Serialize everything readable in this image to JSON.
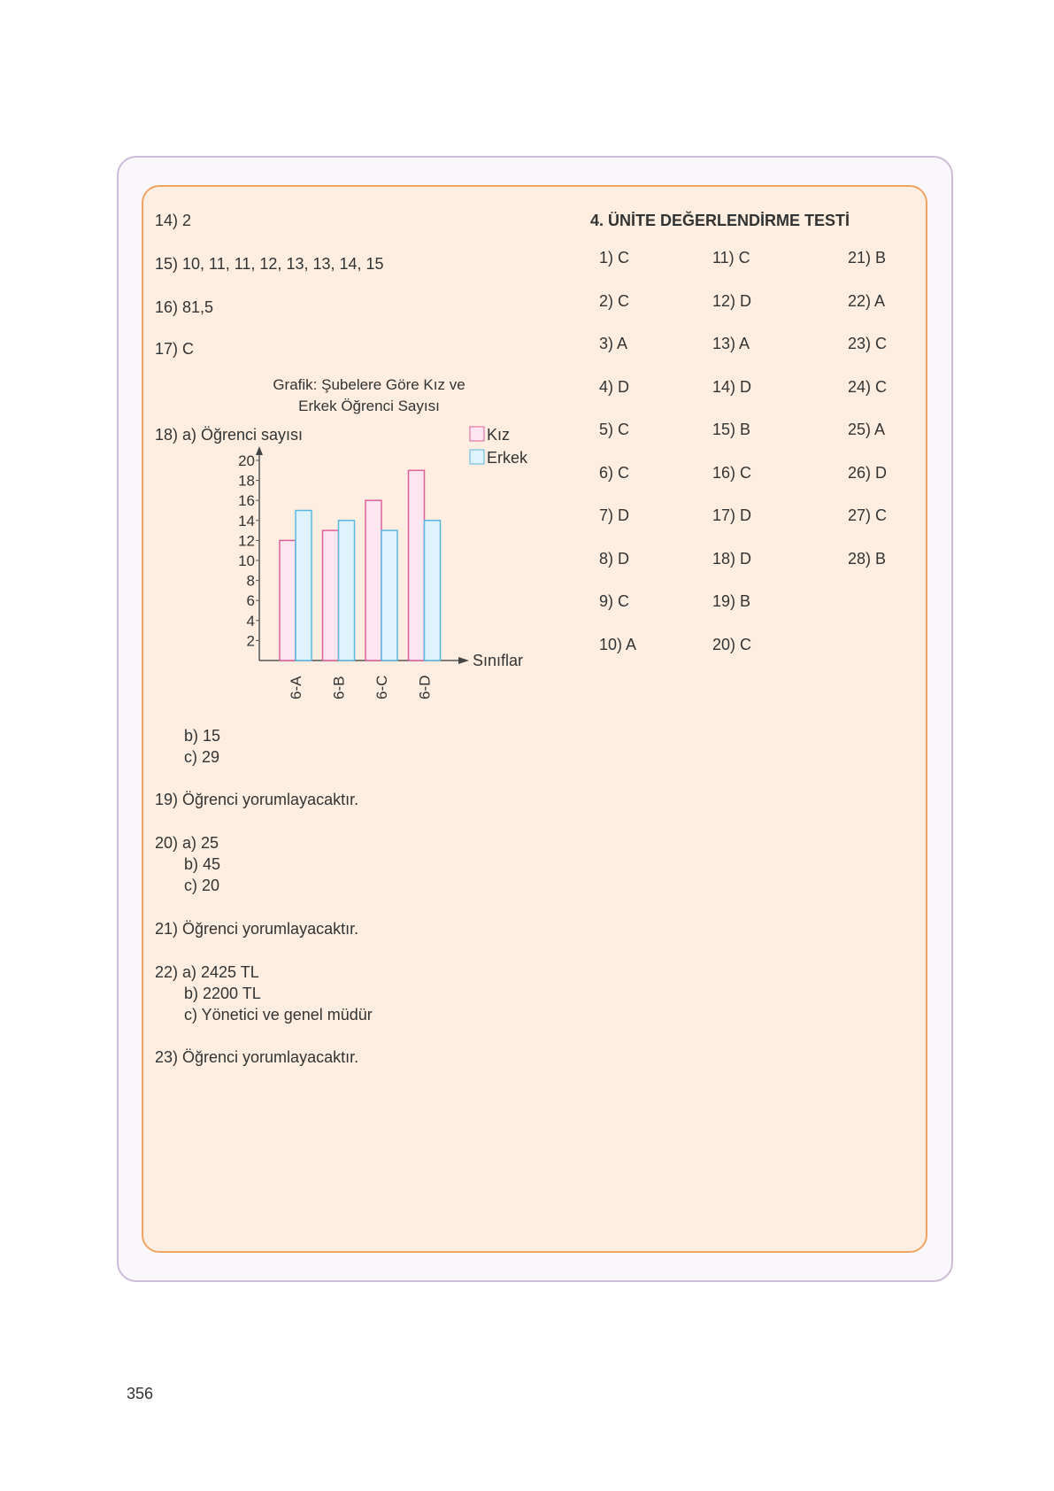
{
  "left": {
    "items": [
      {
        "text": "14) 2"
      },
      {
        "text": "15) 10, 11, 11, 12, 13, 13, 14, 15"
      },
      {
        "text": "16) 81,5"
      },
      {
        "text": "17) C"
      }
    ],
    "q18a": "18) a) Öğrenci sayısı",
    "q18b": "b) 15",
    "q18c": "c) 29",
    "q19": "19) Öğrenci yorumlayacaktır.",
    "q20a": "20) a) 25",
    "q20b": "b) 45",
    "q20c": "c) 20",
    "q21": "21) Öğrenci yorumlayacaktır.",
    "q22a": "22) a) 2425 TL",
    "q22b": "b) 2200 TL",
    "q22c": "c) Yönetici ve genel müdür",
    "q23": "23) Öğrenci yorumlayacaktır."
  },
  "chart_data": {
    "type": "bar",
    "title_line1": "Grafik: Şubelere Göre Kız ve",
    "title_line2": "Erkek Öğrenci Sayısı",
    "xlabel": "Sınıflar",
    "categories": [
      "6-A",
      "6-B",
      "6-C",
      "6-D"
    ],
    "series": [
      {
        "name": "Kız",
        "values": [
          12,
          13,
          16,
          19
        ],
        "color": "#e0609a",
        "fill": "#fde6f0"
      },
      {
        "name": "Erkek",
        "values": [
          15,
          14,
          13,
          14
        ],
        "color": "#5ab8e0",
        "fill": "#def3fb"
      }
    ],
    "yticks": [
      "2",
      "4",
      "6",
      "8",
      "10",
      "12",
      "14",
      "16",
      "18",
      "20"
    ],
    "ylim": [
      0,
      20
    ],
    "legend": "top-right"
  },
  "right": {
    "title": "4. ÜNİTE DEĞERLENDİRME TESTİ",
    "columns": [
      [
        "1) C",
        "2) C",
        "3) A",
        "4) D",
        "5) C",
        "6) C",
        "7) D",
        "8) D",
        "9) C",
        "10) A"
      ],
      [
        "11) C",
        "12) D",
        "13) A",
        "14) D",
        "15) B",
        "16) C",
        "17) D",
        "18) D",
        "19) B",
        "20) C"
      ],
      [
        "21) B",
        "22) A",
        "23) C",
        "24) C",
        "25) A",
        "26) D",
        "27) C",
        "28) B"
      ]
    ]
  },
  "page_number": "356"
}
